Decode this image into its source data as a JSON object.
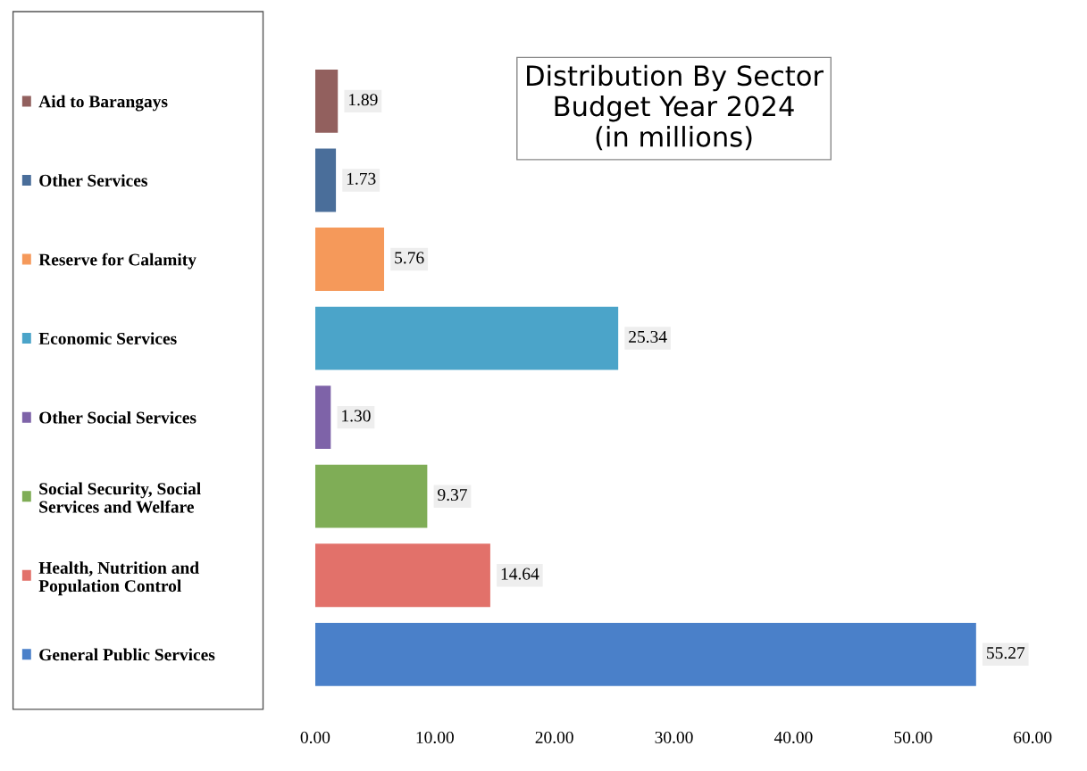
{
  "chart_data": {
    "type": "bar",
    "orientation": "horizontal",
    "title": "Distribution By Sector\nBudget Year 2024\n(in millions)",
    "categories": [
      "Aid to Barangays",
      "Other Services",
      "Reserve for Calamity",
      "Economic Services",
      "Other Social Services",
      "Social Security, Social\nServices and Welfare",
      "Health, Nutrition and\nPopulation Control",
      "General Public Services"
    ],
    "values": [
      1.89,
      1.73,
      5.76,
      25.34,
      1.3,
      9.37,
      14.64,
      55.27
    ],
    "value_labels": [
      "1.89",
      "1.73",
      "5.76",
      "25.34",
      "1.30",
      "9.37",
      "14.64",
      "55.27"
    ],
    "colors": [
      "#92605e",
      "#4a6e9a",
      "#f5995a",
      "#4ba4c9",
      "#7e63a8",
      "#7fad56",
      "#e2716a",
      "#4a80c9"
    ],
    "xlim": [
      0,
      60
    ],
    "xticks": [
      {
        "value": 0,
        "label": "0.00"
      },
      {
        "value": 10,
        "label": "10.00"
      },
      {
        "value": 20,
        "label": "20.00"
      },
      {
        "value": 30,
        "label": "30.00"
      },
      {
        "value": 40,
        "label": "40.00"
      },
      {
        "value": 50,
        "label": "50.00"
      },
      {
        "value": 60,
        "label": "60.00"
      }
    ],
    "grid": false
  }
}
